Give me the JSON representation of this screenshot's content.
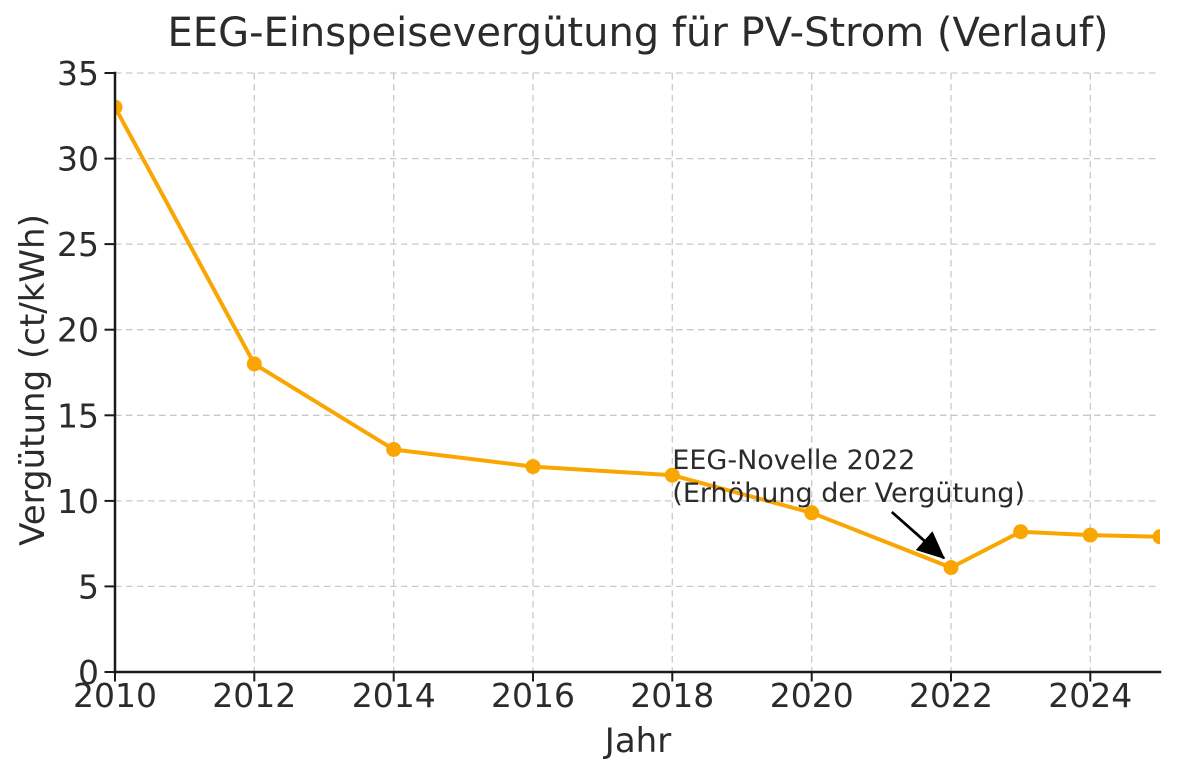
{
  "chart_data": {
    "type": "line",
    "title": "EEG-Einspeisevergütung für PV-Strom (Verlauf)",
    "xlabel": "Jahr",
    "ylabel": "Vergütung (ct/kWh)",
    "x": [
      2010,
      2012,
      2014,
      2016,
      2018,
      2020,
      2022,
      2023,
      2024,
      2025
    ],
    "y": [
      33,
      18,
      13,
      12,
      11.5,
      9.3,
      6.1,
      8.2,
      8.0,
      7.9
    ],
    "xlim": [
      2010,
      2025
    ],
    "ylim": [
      0,
      35
    ],
    "xticks": [
      2010,
      2012,
      2014,
      2016,
      2018,
      2020,
      2022,
      2024
    ],
    "yticks": [
      0,
      5,
      10,
      15,
      20,
      25,
      30,
      35
    ],
    "grid": "dashed",
    "legend": "none",
    "marker": "circle",
    "annotation": {
      "line1": "EEG-Novelle 2022",
      "line2": "(Erhöhung der Vergütung)",
      "text_pos": [
        2018.0,
        13.3
      ],
      "arrow_from": [
        2021.15,
        9.35
      ],
      "arrow_to": [
        2021.9,
        6.65
      ]
    }
  },
  "colors": {
    "line": "#F9A602",
    "marker": "#F9A602",
    "grid": "#C9C9C9",
    "axis": "#1A1A1A",
    "text": "#2B2B2B",
    "arrow": "#000000",
    "background": "#FFFFFF"
  }
}
